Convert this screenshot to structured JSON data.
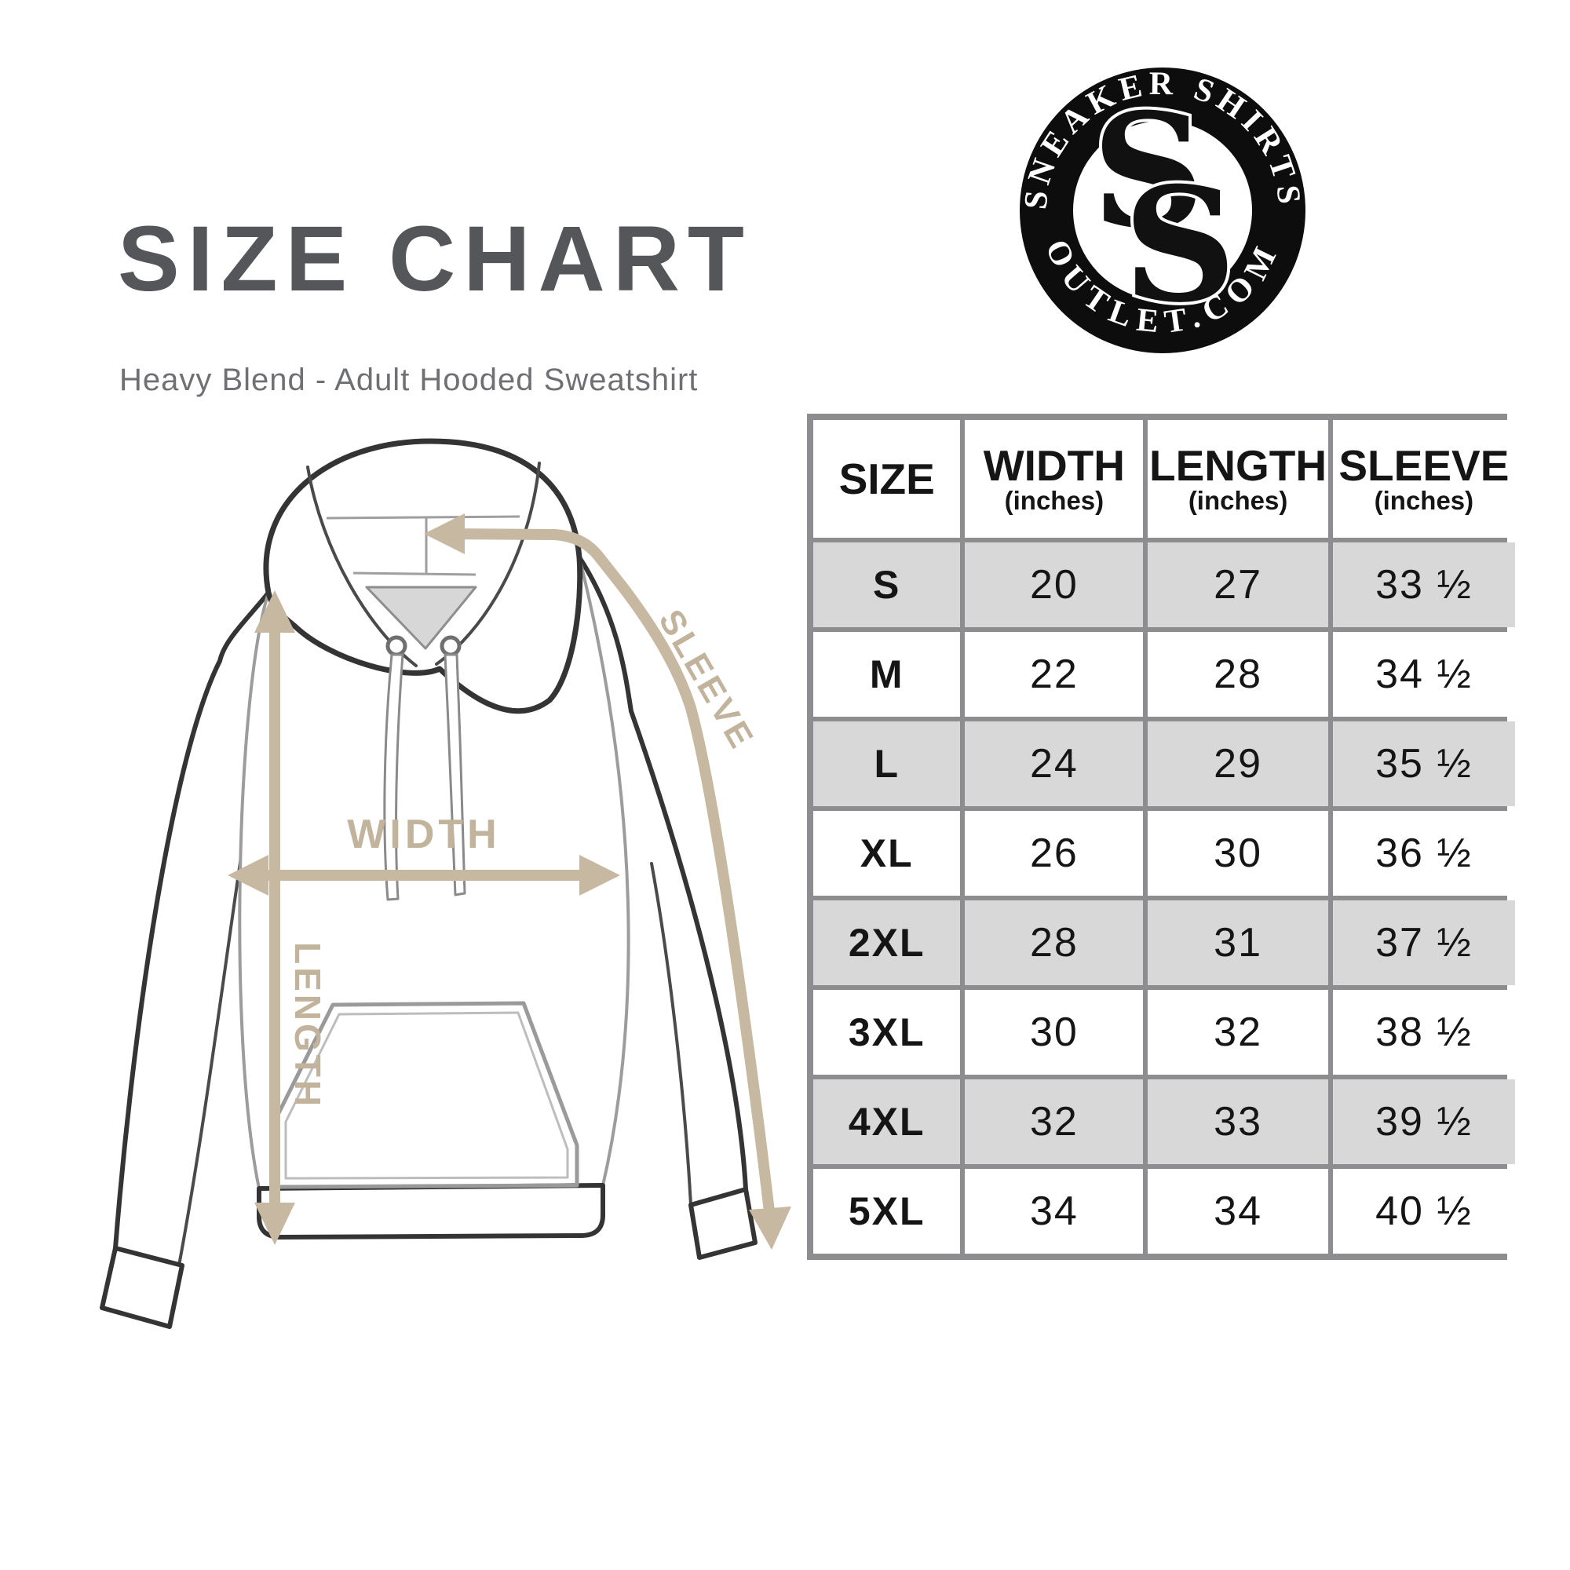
{
  "header": {
    "title": "SIZE CHART",
    "subtitle": "Heavy Blend - Adult Hooded Sweatshirt"
  },
  "logo": {
    "top_text": "SNEAKER SHIRTS",
    "bottom_text": "OUTLET.COM",
    "monogram_letter": "S",
    "ring_color": "#0d0d0d",
    "text_color": "#ffffff"
  },
  "diagram": {
    "garment": "hooded sweatshirt line drawing",
    "width_label": "WIDTH",
    "length_label": "LENGTH",
    "sleeve_label": "SLEEVE",
    "arrow_color": "#c7b8a2",
    "outline_color": "#343434"
  },
  "size_table": {
    "columns": [
      {
        "label": "SIZE",
        "sub": ""
      },
      {
        "label": "WIDTH",
        "sub": "(inches)"
      },
      {
        "label": "LENGTH",
        "sub": "(inches)"
      },
      {
        "label": "SLEEVE",
        "sub": "(inches)"
      }
    ],
    "rows": [
      {
        "size": "S",
        "width": "20",
        "length": "27",
        "sleeve": "33 ½"
      },
      {
        "size": "M",
        "width": "22",
        "length": "28",
        "sleeve": "34 ½"
      },
      {
        "size": "L",
        "width": "24",
        "length": "29",
        "sleeve": "35 ½"
      },
      {
        "size": "XL",
        "width": "26",
        "length": "30",
        "sleeve": "36 ½"
      },
      {
        "size": "2XL",
        "width": "28",
        "length": "31",
        "sleeve": "37 ½"
      },
      {
        "size": "3XL",
        "width": "30",
        "length": "32",
        "sleeve": "38 ½"
      },
      {
        "size": "4XL",
        "width": "32",
        "length": "33",
        "sleeve": "39 ½"
      },
      {
        "size": "5XL",
        "width": "34",
        "length": "34",
        "sleeve": "40 ½"
      }
    ],
    "row_shade_color": "#d8d8d8",
    "grid_color": "#8d8d8f"
  }
}
